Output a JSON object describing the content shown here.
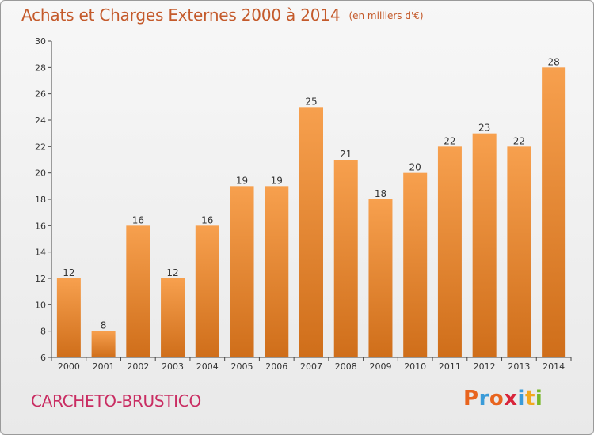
{
  "header": {
    "title": "Achats et Charges Externes 2000 à 2014",
    "subtitle": "(en milliers d'€)"
  },
  "footer": {
    "commune": "CARCHETO-BRUSTICO",
    "logo_letters": [
      "P",
      "r",
      "o",
      "x",
      "i",
      "t",
      "i"
    ],
    "logo_colors": [
      "#e8641e",
      "#3a9bd8",
      "#e8641e",
      "#d8243a",
      "#3a9bd8",
      "#f2a81d",
      "#78b828"
    ]
  },
  "colors": {
    "bar_light": "#f7a04e",
    "bar_dark": "#cf6e1a",
    "accent": "#c45a2b",
    "commune": "#c92d62"
  },
  "chart_data": {
    "type": "bar",
    "categories": [
      "2000",
      "2001",
      "2002",
      "2003",
      "2004",
      "2005",
      "2006",
      "2007",
      "2008",
      "2009",
      "2010",
      "2011",
      "2012",
      "2013",
      "2014"
    ],
    "values": [
      12,
      8,
      16,
      12,
      16,
      19,
      19,
      25,
      21,
      18,
      20,
      22,
      23,
      22,
      28
    ],
    "title": "Achats et Charges Externes 2000 à 2014",
    "xlabel": "",
    "ylabel": "",
    "ylim": [
      6,
      30
    ],
    "yticks": [
      6,
      8,
      10,
      12,
      14,
      16,
      18,
      20,
      22,
      24,
      26,
      28,
      30
    ],
    "grid": false,
    "data_labels": true
  }
}
